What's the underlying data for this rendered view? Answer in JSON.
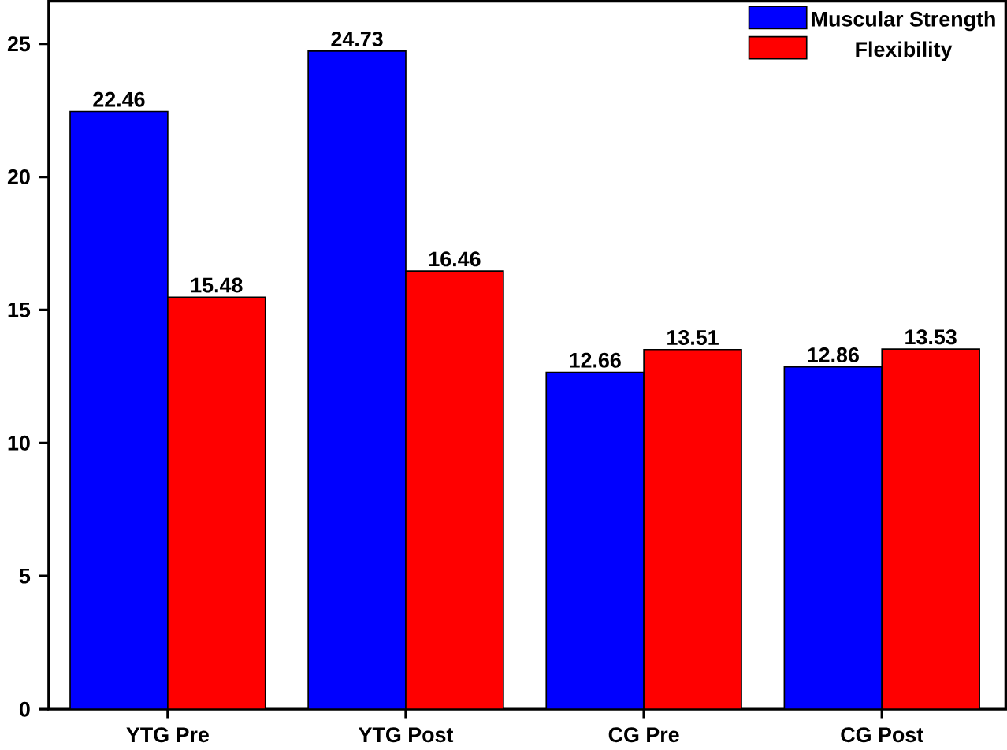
{
  "chart_data": {
    "type": "bar",
    "categories": [
      "YTG Pre",
      "YTG Post",
      "CG Pre",
      "CG Post"
    ],
    "series": [
      {
        "name": "Muscular Strength",
        "color": "#0000ff",
        "values": [
          22.46,
          24.73,
          12.66,
          12.86
        ]
      },
      {
        "name": "Flexibility",
        "color": "#ff0000",
        "values": [
          15.48,
          16.46,
          13.51,
          13.53
        ]
      }
    ],
    "ylim": [
      0,
      26.6
    ],
    "yticks": [
      0,
      5,
      10,
      15,
      20,
      25
    ],
    "data_labels": true,
    "legend": "top right",
    "grid": false
  }
}
